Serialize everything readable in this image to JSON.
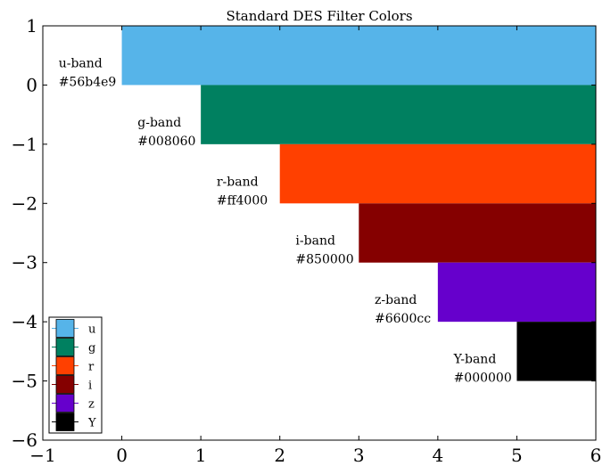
{
  "chart_data": {
    "type": "bar",
    "orientation": "horizontal",
    "title": "Standard DES Filter Colors",
    "xlabel": "",
    "ylabel": "",
    "xlim": [
      -1,
      6
    ],
    "ylim": [
      -6,
      1
    ],
    "xticks": [
      -1,
      0,
      1,
      2,
      3,
      4,
      5,
      6
    ],
    "yticks": [
      1,
      0,
      -1,
      -2,
      -3,
      -4,
      -5,
      -6
    ],
    "xtick_labels": [
      "−1",
      "0",
      "1",
      "2",
      "3",
      "4",
      "5",
      "6"
    ],
    "ytick_labels": [
      "1",
      "0",
      "−1",
      "−2",
      "−3",
      "−4",
      "−5",
      "−6"
    ],
    "grid": false,
    "legend_position": "lower-left",
    "series": [
      {
        "name": "u",
        "band_label": "u-band",
        "color": "#56b4e9",
        "x_start": 0,
        "x_end": 6,
        "y_bottom": 0,
        "y_top": 1
      },
      {
        "name": "g",
        "band_label": "g-band",
        "color": "#008060",
        "x_start": 1,
        "x_end": 6,
        "y_bottom": -1,
        "y_top": 0
      },
      {
        "name": "r",
        "band_label": "r-band",
        "color": "#ff4000",
        "x_start": 2,
        "x_end": 6,
        "y_bottom": -2,
        "y_top": -1
      },
      {
        "name": "i",
        "band_label": "i-band",
        "color": "#850000",
        "x_start": 3,
        "x_end": 6,
        "y_bottom": -3,
        "y_top": -2
      },
      {
        "name": "z",
        "band_label": "z-band",
        "color": "#6600cc",
        "x_start": 4,
        "x_end": 6,
        "y_bottom": -4,
        "y_top": -3
      },
      {
        "name": "Y",
        "band_label": "Y-band",
        "color": "#000000",
        "x_start": 5,
        "x_end": 6,
        "y_bottom": -5,
        "y_top": -4
      }
    ]
  }
}
